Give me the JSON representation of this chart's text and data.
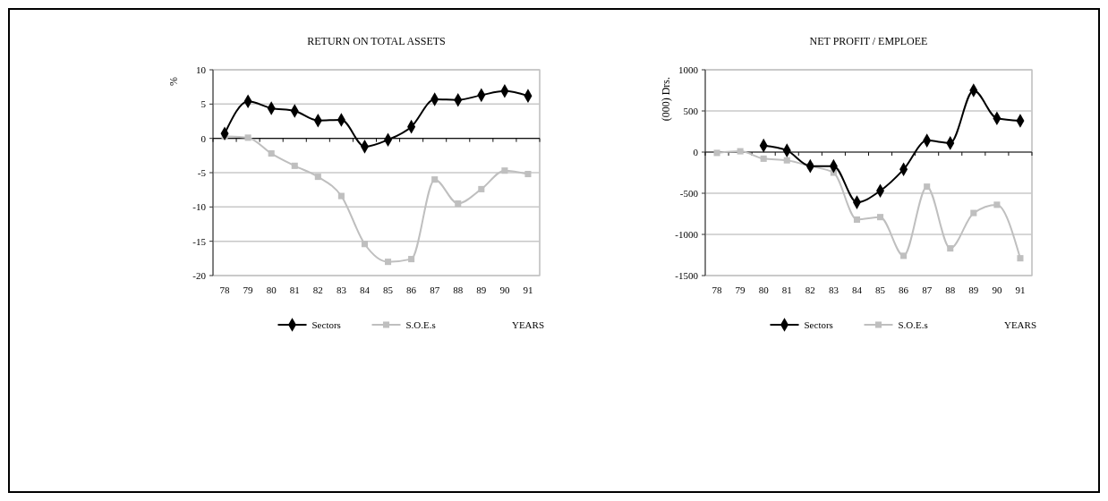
{
  "chart_data": [
    {
      "type": "line",
      "title": "RETURN ON TOTAL ASSETS",
      "ylabel": "%",
      "xlabel": "YEARS",
      "categories": [
        "78",
        "79",
        "80",
        "81",
        "82",
        "83",
        "84",
        "85",
        "86",
        "87",
        "88",
        "89",
        "90",
        "91"
      ],
      "series": [
        {
          "name": "Sectors",
          "color": "#000000",
          "marker": "diamond",
          "values": [
            0.7,
            5.4,
            4.4,
            4.0,
            2.6,
            2.7,
            -1.2,
            -0.2,
            1.7,
            5.7,
            5.6,
            6.3,
            6.9,
            6.2
          ]
        },
        {
          "name": "S.O.E.s",
          "color": "#bfbfbf",
          "marker": "square",
          "values": [
            0.3,
            0.1,
            -2.2,
            -4.0,
            -5.6,
            -8.4,
            -15.4,
            -18.0,
            -17.6,
            -6.0,
            -9.5,
            -7.4,
            -4.7,
            -5.2
          ]
        }
      ],
      "ylim": [
        -20,
        10
      ],
      "yticks": [
        -20,
        -15,
        -10,
        -5,
        0,
        5,
        10
      ],
      "grid": "y",
      "legend": "bottom"
    },
    {
      "type": "line",
      "title": "NET PROFIT / EMPLOEE",
      "ylabel": "(000) Drs.",
      "xlabel": "YEARS",
      "categories": [
        "78",
        "79",
        "80",
        "81",
        "82",
        "83",
        "84",
        "85",
        "86",
        "87",
        "88",
        "89",
        "90",
        "91"
      ],
      "series": [
        {
          "name": "Sectors",
          "color": "#000000",
          "marker": "diamond",
          "values": [
            null,
            null,
            80,
            20,
            -170,
            -170,
            -610,
            -470,
            -210,
            140,
            110,
            750,
            410,
            380
          ]
        },
        {
          "name": "S.O.E.s",
          "color": "#bfbfbf",
          "marker": "square",
          "values": [
            -10,
            10,
            -80,
            -100,
            -170,
            -250,
            -820,
            -790,
            -1260,
            -420,
            -1170,
            -740,
            -640,
            -1290
          ]
        }
      ],
      "ylim": [
        -1500,
        1000
      ],
      "yticks": [
        -1500,
        -1000,
        -500,
        0,
        500,
        1000
      ],
      "grid": "y",
      "legend": "bottom"
    }
  ]
}
